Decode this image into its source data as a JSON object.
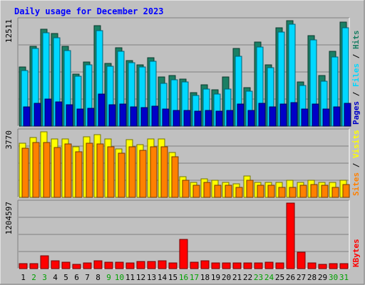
{
  "chart_data": {
    "type": "bar",
    "title": "Daily usage for December 2023",
    "categories": [
      "1",
      "2",
      "3",
      "4",
      "5",
      "6",
      "7",
      "8",
      "9",
      "10",
      "11",
      "12",
      "13",
      "14",
      "15",
      "16",
      "17",
      "18",
      "19",
      "20",
      "21",
      "22",
      "23",
      "24",
      "25",
      "26",
      "27",
      "28",
      "29",
      "30",
      "31"
    ],
    "weekend_days": [
      "2",
      "3",
      "9",
      "10",
      "16",
      "17",
      "23",
      "24",
      "30",
      "31"
    ],
    "panels": [
      {
        "id": "hits-files-pages",
        "ymax_label": "12511",
        "ymax": 12511,
        "labels": [
          "Pages",
          "Files",
          "Hits"
        ],
        "series": [
          {
            "name": "Hits",
            "color": "#1b7f64",
            "values": [
              7000,
              9500,
              11500,
              11000,
              9500,
              6200,
              7600,
              11900,
              7400,
              9300,
              7800,
              7300,
              8100,
              5800,
              6000,
              5600,
              4000,
              4900,
              4300,
              5800,
              9200,
              4600,
              10000,
              7300,
              11700,
              12500,
              5200,
              10700,
              6000,
              8900,
              12300
            ]
          },
          {
            "name": "Files",
            "color": "#00d8ff",
            "values": [
              6600,
              9200,
              11100,
              10500,
              9000,
              5900,
              7300,
              11300,
              7100,
              8900,
              7500,
              7000,
              7700,
              5100,
              5500,
              5200,
              3600,
              4400,
              3800,
              4400,
              8300,
              4100,
              9400,
              6900,
              11200,
              12100,
              4800,
              10200,
              5300,
              8200,
              11700
            ]
          },
          {
            "name": "Pages",
            "color": "#0000c8",
            "values": [
              2300,
              2700,
              3200,
              2900,
              2500,
              2000,
              2100,
              3800,
              2500,
              2600,
              2300,
              2200,
              2400,
              2000,
              1900,
              1900,
              1800,
              1900,
              1800,
              1900,
              2600,
              1900,
              2700,
              2300,
              2600,
              2800,
              2000,
              2600,
              2000,
              2300,
              2700
            ]
          }
        ]
      },
      {
        "id": "visits-sites",
        "ymax_label": "3770",
        "ymax": 3770,
        "labels": [
          "Sites",
          "Visits"
        ],
        "series": [
          {
            "name": "Visits",
            "color": "#ffff00",
            "values": [
              3120,
              3440,
              3770,
              3340,
              3370,
              2910,
              3470,
              3600,
              3360,
              2800,
              3320,
              3050,
              3370,
              3380,
              2600,
              1180,
              880,
              1080,
              980,
              880,
              770,
              1220,
              880,
              880,
              870,
              1000,
              880,
              1000,
              880,
              870,
              1000
            ]
          },
          {
            "name": "Sites",
            "color": "#ff8000",
            "values": [
              2830,
              3140,
              3140,
              2880,
              3060,
              2630,
              3100,
              3070,
              2900,
              2550,
              2900,
              2700,
              2900,
              2900,
              2330,
              1000,
              710,
              860,
              710,
              710,
              570,
              1000,
              680,
              680,
              570,
              570,
              680,
              720,
              680,
              580,
              720
            ]
          }
        ]
      },
      {
        "id": "kbytes",
        "ymax_label": "1204597",
        "ymax": 1204597,
        "labels": [
          "KBytes"
        ],
        "series": [
          {
            "name": "KBytes",
            "color": "#ff0000",
            "values": [
              90000,
              90000,
              230000,
              140000,
              115000,
              75000,
              105000,
              150000,
              115000,
              115000,
              105000,
              125000,
              135000,
              145000,
              105000,
              540000,
              120000,
              140000,
              105000,
              105000,
              105000,
              105000,
              105000,
              115000,
              105000,
              1204597,
              300000,
              105000,
              75000,
              90000,
              90000
            ]
          }
        ]
      }
    ]
  },
  "colors": {
    "background": "#c0c0c0",
    "title": "#0000ff",
    "weekday_label": "#000000",
    "weekend_label": "#00a000",
    "grid": "#808080"
  }
}
